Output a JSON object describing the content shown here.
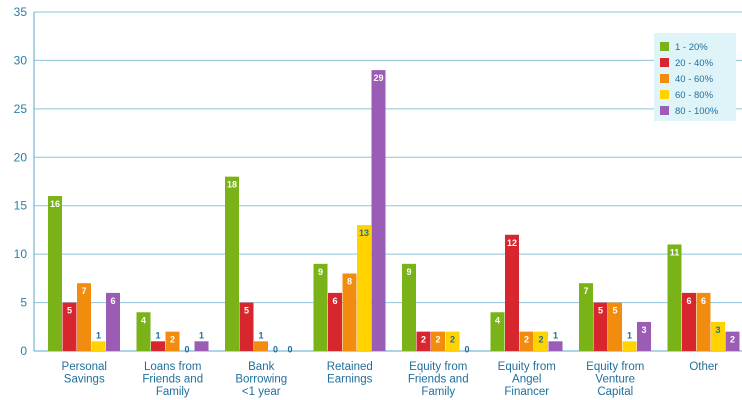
{
  "chart_data": {
    "type": "bar",
    "categories": [
      "Personal\nSavings",
      "Loans from\nFriends and\nFamily",
      "Bank\nBorrowing\n<1 year",
      "Retained\nEarnings",
      "Equity from\nFriends and\nFamily",
      "Equity from\nAngel\nFinancer",
      "Equity from\nVenture\nCapital",
      "Other"
    ],
    "series": [
      {
        "name": "1 - 20%",
        "color": "#7ab317",
        "values": [
          16,
          4,
          18,
          9,
          9,
          4,
          7,
          11
        ]
      },
      {
        "name": "20 - 40%",
        "color": "#d8262e",
        "values": [
          5,
          1,
          5,
          6,
          2,
          12,
          5,
          6
        ]
      },
      {
        "name": "40 - 60%",
        "color": "#f28c0f",
        "values": [
          7,
          2,
          1,
          8,
          2,
          2,
          5,
          6
        ]
      },
      {
        "name": "60 - 80%",
        "color": "#ffd200",
        "values": [
          1,
          0,
          0,
          13,
          2,
          2,
          1,
          3
        ]
      },
      {
        "name": "80 - 100%",
        "color": "#9a5cb4",
        "values": [
          6,
          1,
          0,
          29,
          0,
          1,
          3,
          2
        ]
      }
    ],
    "y_ticks": [
      0,
      5,
      10,
      15,
      20,
      25,
      30,
      35
    ],
    "ylim": [
      0,
      35
    ],
    "grid": true,
    "legend_position": "top-right"
  }
}
